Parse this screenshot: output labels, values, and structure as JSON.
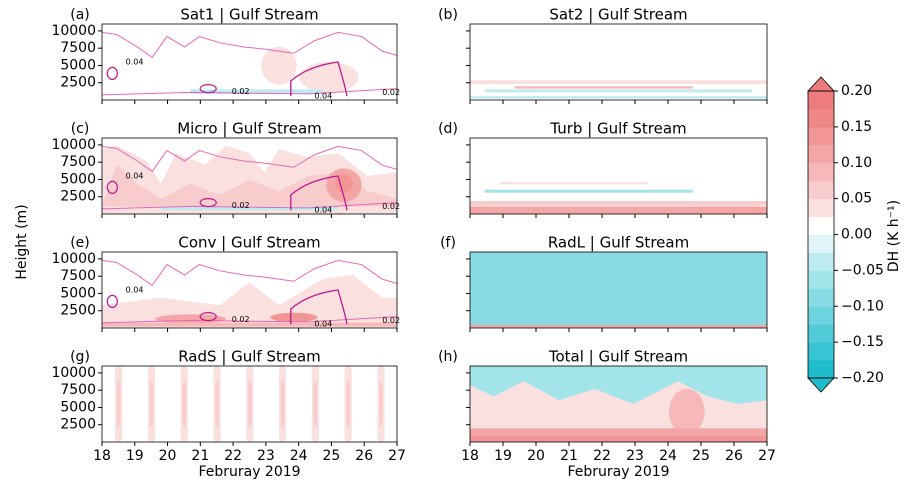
{
  "figure": {
    "ylabel": "Height (m)"
  },
  "colorbar": {
    "label": "DH (K h⁻¹)",
    "levels": [
      -0.2,
      -0.175,
      -0.15,
      -0.125,
      -0.1,
      -0.075,
      -0.05,
      -0.025,
      0,
      0.025,
      0.05,
      0.075,
      0.1,
      0.125,
      0.15,
      0.175,
      0.2
    ],
    "colors": [
      "#1fbccb",
      "#38c4d2",
      "#52cbd8",
      "#6dd3de",
      "#88dbe4",
      "#a3e3ea",
      "#bdebf0",
      "#e0f5f8",
      "#ffffff",
      "#fbe0e0",
      "#f8cccc",
      "#f6b8b8",
      "#f4a6a6",
      "#f29595",
      "#f08787",
      "#ee7c7c"
    ],
    "ticks": [
      {
        "value": -0.2,
        "label": "−0.20"
      },
      {
        "value": -0.15,
        "label": "−0.15"
      },
      {
        "value": -0.1,
        "label": "−0.10"
      },
      {
        "value": -0.05,
        "label": "−0.05"
      },
      {
        "value": 0,
        "label": "0.00"
      },
      {
        "value": 0.05,
        "label": "0.05"
      },
      {
        "value": 0.1,
        "label": "0.10"
      },
      {
        "value": 0.15,
        "label": "0.15"
      },
      {
        "value": 0.2,
        "label": "0.20"
      }
    ]
  },
  "chart_data": [
    {
      "type": "contour",
      "panel_label": "(a)",
      "title": "Sat1 | Gulf Stream",
      "xlim": [
        18,
        27
      ],
      "xticks": [
        18,
        19,
        20,
        21,
        22,
        23,
        24,
        25,
        26,
        27
      ],
      "ylim": [
        0,
        11000
      ],
      "yticks": [
        2500,
        5000,
        7500,
        10000
      ],
      "contour_labels": [
        0.02,
        0.04
      ]
    },
    {
      "type": "contour",
      "panel_label": "(b)",
      "title": "Sat2 | Gulf Stream",
      "xlim": [
        18,
        27
      ],
      "xticks": [
        18,
        19,
        20,
        21,
        22,
        23,
        24,
        25,
        26,
        27
      ],
      "ylim": [
        0,
        11000
      ],
      "yticks": [
        2500,
        5000,
        7500,
        10000
      ]
    },
    {
      "type": "contour",
      "panel_label": "(c)",
      "title": "Micro | Gulf Stream",
      "xlim": [
        18,
        27
      ],
      "xticks": [
        18,
        19,
        20,
        21,
        22,
        23,
        24,
        25,
        26,
        27
      ],
      "ylim": [
        0,
        11000
      ],
      "yticks": [
        2500,
        5000,
        7500,
        10000
      ],
      "contour_labels": [
        0.02,
        0.04
      ]
    },
    {
      "type": "contour",
      "panel_label": "(d)",
      "title": "Turb | Gulf Stream",
      "xlim": [
        18,
        27
      ],
      "xticks": [
        18,
        19,
        20,
        21,
        22,
        23,
        24,
        25,
        26,
        27
      ],
      "ylim": [
        0,
        11000
      ],
      "yticks": [
        2500,
        5000,
        7500,
        10000
      ]
    },
    {
      "type": "contour",
      "panel_label": "(e)",
      "title": "Conv | Gulf Stream",
      "xlim": [
        18,
        27
      ],
      "xticks": [
        18,
        19,
        20,
        21,
        22,
        23,
        24,
        25,
        26,
        27
      ],
      "ylim": [
        0,
        11000
      ],
      "yticks": [
        2500,
        5000,
        7500,
        10000
      ],
      "contour_labels": [
        0.02,
        0.04
      ]
    },
    {
      "type": "contour",
      "panel_label": "(f)",
      "title": "RadL | Gulf Stream",
      "xlim": [
        18,
        27
      ],
      "xticks": [
        18,
        19,
        20,
        21,
        22,
        23,
        24,
        25,
        26,
        27
      ],
      "ylim": [
        0,
        11000
      ],
      "yticks": [
        2500,
        5000,
        7500,
        10000
      ]
    },
    {
      "type": "contour",
      "panel_label": "(g)",
      "title": "RadS | Gulf Stream",
      "xlim": [
        18,
        27
      ],
      "xticks": [
        18,
        19,
        20,
        21,
        22,
        23,
        24,
        25,
        26,
        27
      ],
      "ylim": [
        0,
        11000
      ],
      "yticks": [
        2500,
        5000,
        7500,
        10000
      ],
      "xlabel": "Februray 2019"
    },
    {
      "type": "contour",
      "panel_label": "(h)",
      "title": "Total | Gulf Stream",
      "xlim": [
        18,
        27
      ],
      "xticks": [
        18,
        19,
        20,
        21,
        22,
        23,
        24,
        25,
        26,
        27
      ],
      "ylim": [
        0,
        11000
      ],
      "yticks": [
        2500,
        5000,
        7500,
        10000
      ],
      "xlabel": "Februray 2019"
    }
  ]
}
